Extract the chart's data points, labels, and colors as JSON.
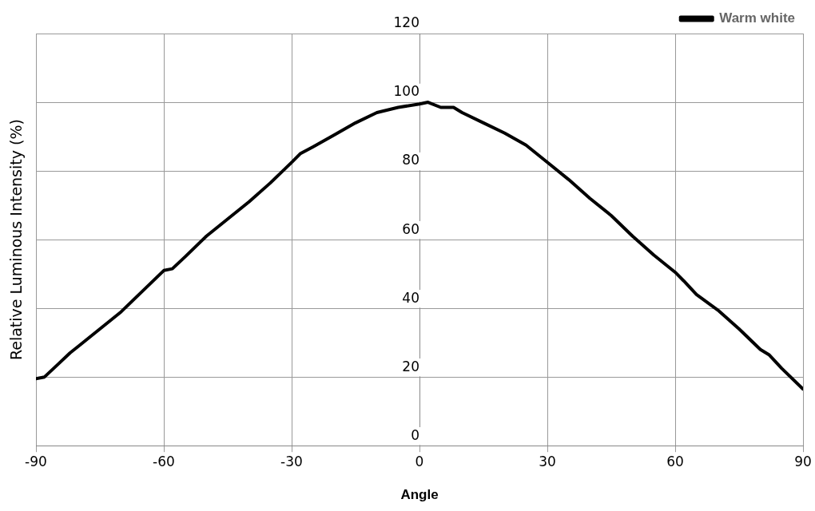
{
  "chart_data": {
    "type": "line",
    "xlabel": "Angle",
    "ylabel": "Relative Luminous Intensity (%)",
    "x": [
      -90,
      -88,
      -85,
      -82,
      -80,
      -75,
      -70,
      -65,
      -60,
      -58,
      -55,
      -50,
      -45,
      -40,
      -35,
      -30,
      -28,
      -25,
      -20,
      -15,
      -10,
      -5,
      0,
      2,
      5,
      8,
      10,
      15,
      20,
      25,
      30,
      35,
      40,
      45,
      50,
      55,
      60,
      62,
      65,
      70,
      75,
      80,
      82,
      85,
      90
    ],
    "series": [
      {
        "name": "Warm white",
        "color": "#000000",
        "values": [
          19.5,
          20,
          23.5,
          27,
          29,
          34,
          39,
          45,
          51,
          51.5,
          55,
          61,
          66,
          71,
          76.5,
          82.5,
          85,
          87,
          90.5,
          94,
          97,
          98.5,
          99.5,
          100,
          98.5,
          98.5,
          97,
          94,
          91,
          87.5,
          82.5,
          77.5,
          72,
          67,
          61,
          55.5,
          50.5,
          48,
          44,
          39.5,
          34,
          28,
          26.5,
          22.5,
          16.5
        ]
      }
    ],
    "xlim": [
      -90,
      90
    ],
    "xticks": [
      -90,
      -60,
      -30,
      0,
      30,
      60,
      90
    ],
    "ylim": [
      0,
      120
    ],
    "yticks": [
      0,
      20,
      40,
      60,
      80,
      100,
      120
    ],
    "grid": true,
    "legend": "top right",
    "marker": "none",
    "line_style": "solid"
  }
}
